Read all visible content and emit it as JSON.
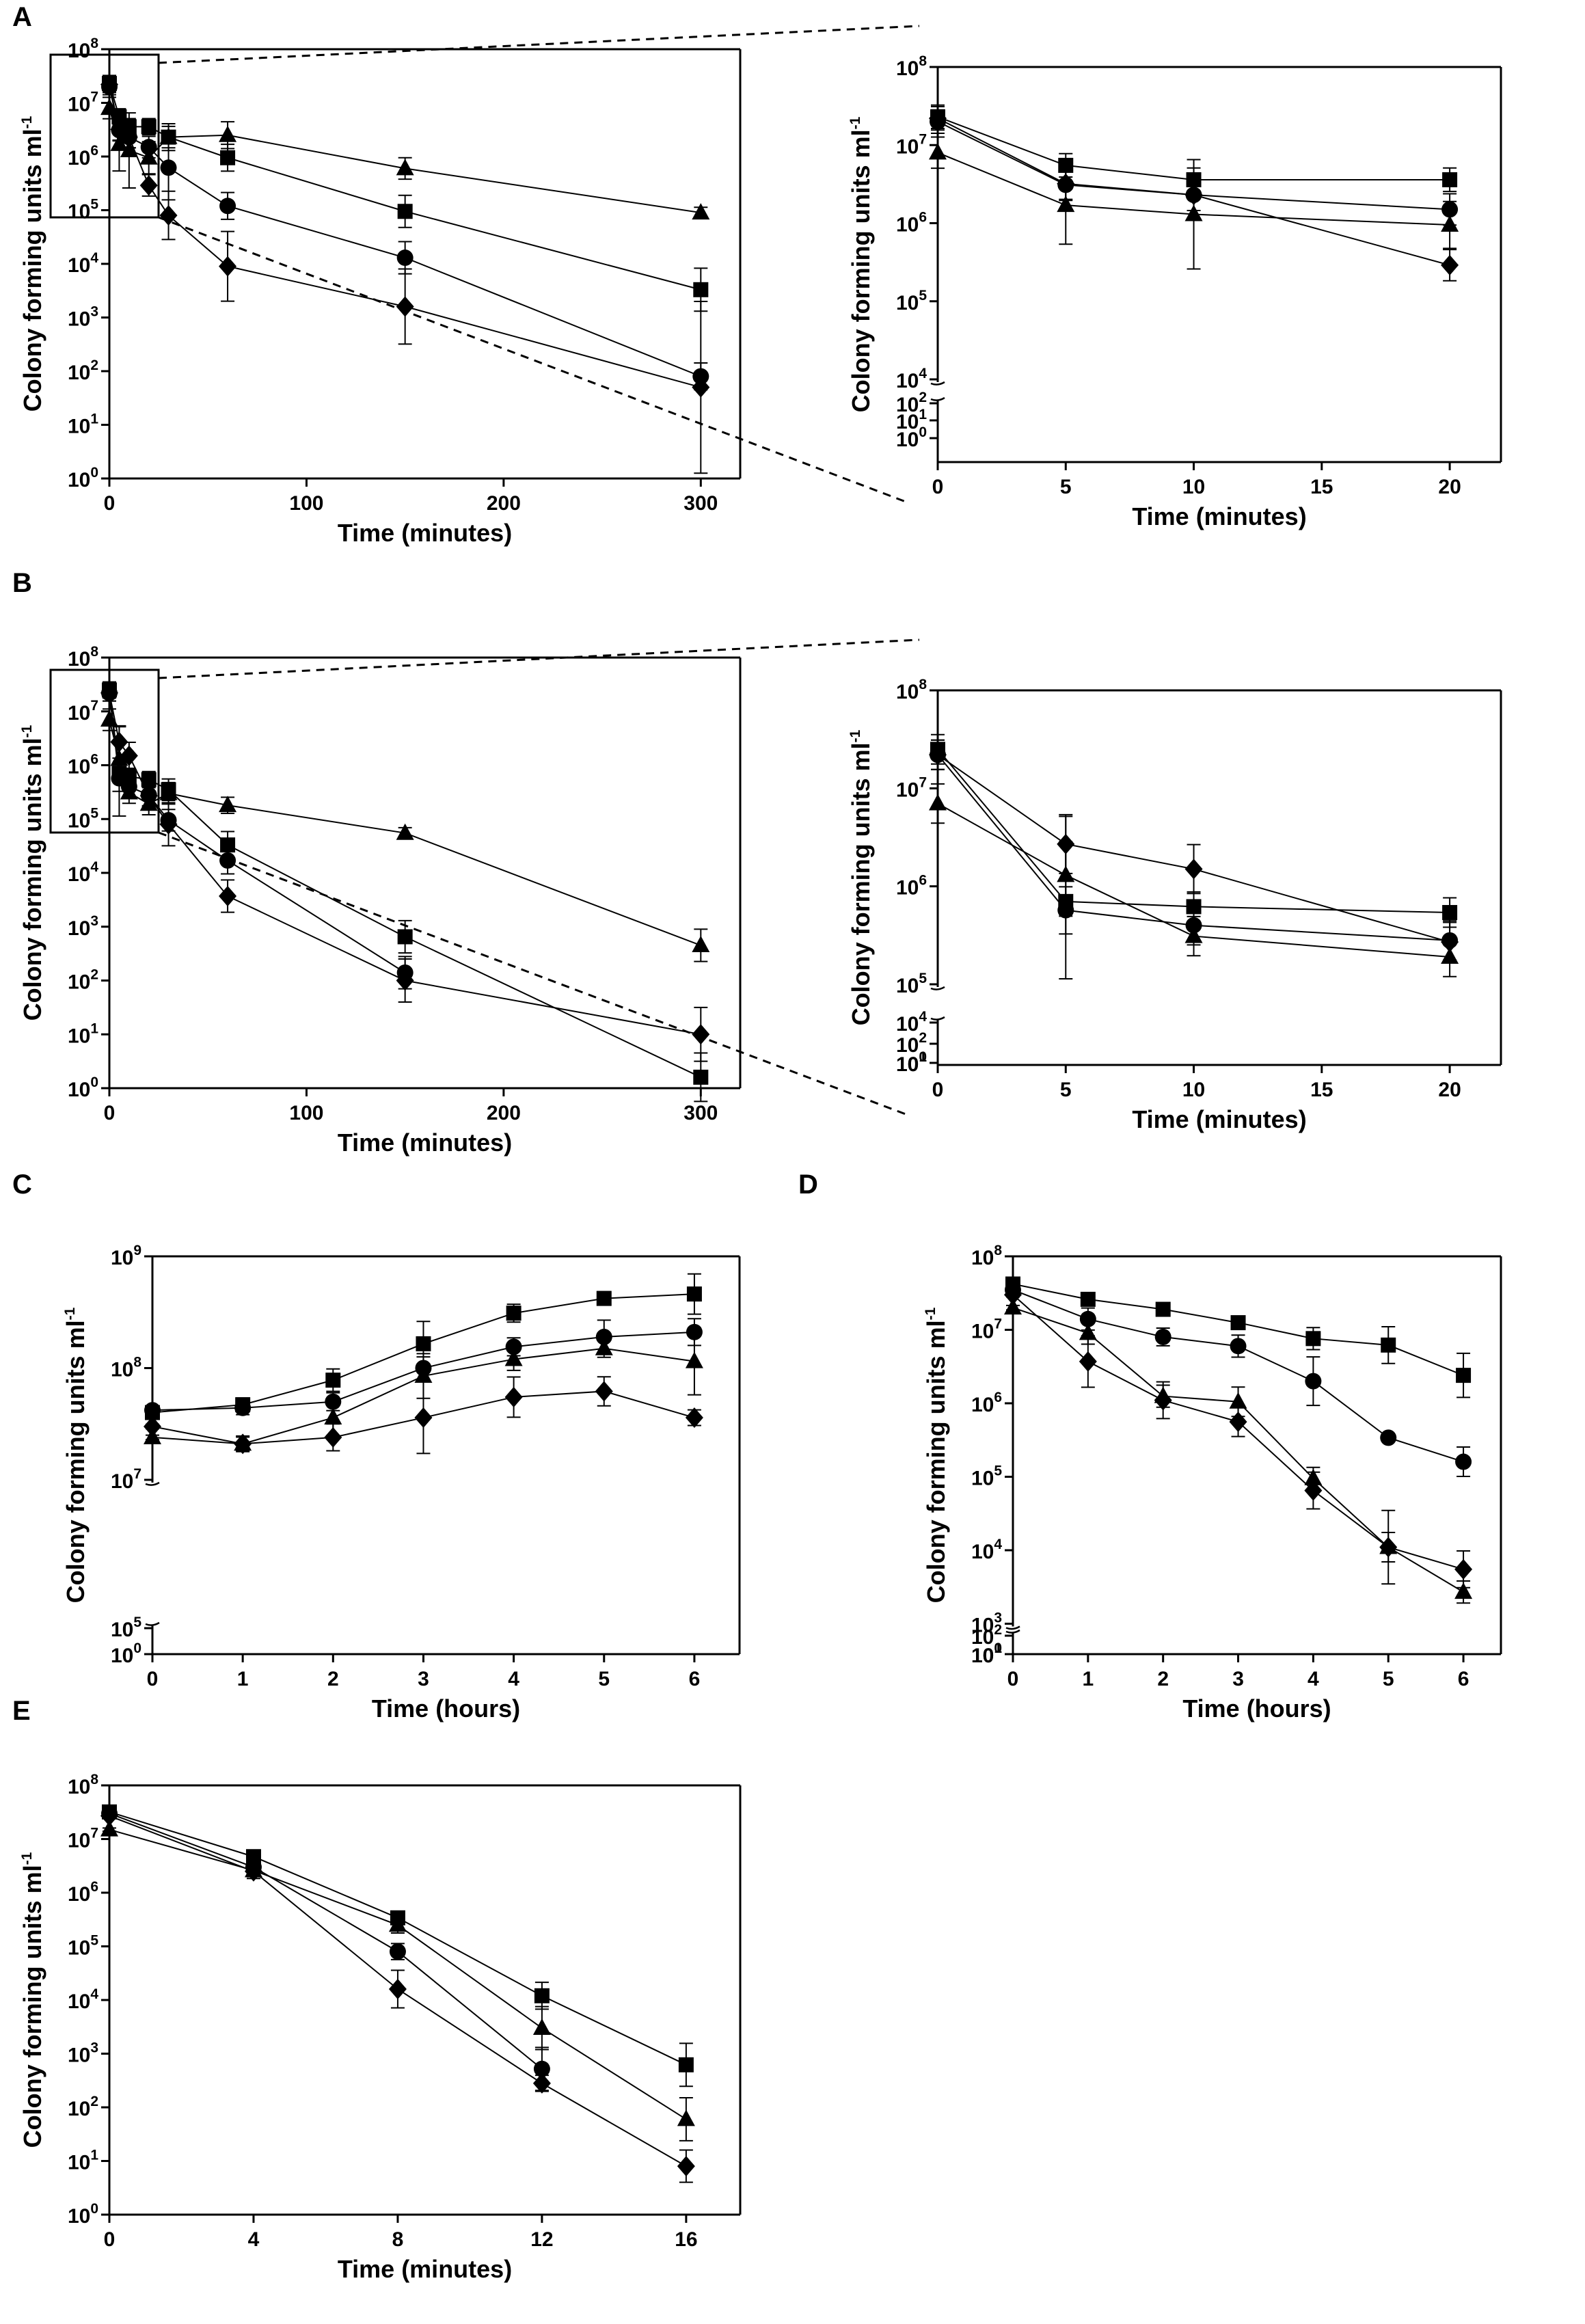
{
  "chart_data": [
    {
      "panel": "A",
      "type": "line",
      "yscale": "log",
      "xlabel": "Time (minutes)",
      "ylabel": "Colony forming units ml-1",
      "xlim": [
        0,
        320
      ],
      "xticks": [
        0,
        100,
        200,
        300
      ],
      "ylim_log10": [
        0,
        8
      ],
      "yticks_log10": [
        0,
        1,
        2,
        3,
        4,
        5,
        6,
        7,
        8
      ],
      "series": [
        {
          "name": "square",
          "marker": "square",
          "x": [
            0,
            5,
            10,
            20,
            30,
            60,
            150,
            300
          ],
          "y": [
            23000000,
            5500000,
            3600000,
            3600000,
            2300000,
            950000,
            95000,
            3300
          ],
          "err": [
            0.15,
            0.15,
            0.15,
            0.15,
            0.2,
            0.25,
            0.3,
            0.4
          ]
        },
        {
          "name": "circle",
          "marker": "circle",
          "x": [
            0,
            5,
            10,
            20,
            30,
            60,
            150,
            300
          ],
          "y": [
            20000000,
            3100000,
            2300000,
            1500000,
            620000,
            120000,
            13000,
            80
          ],
          "err": [
            0.15,
            0.2,
            0.2,
            0.2,
            0.6,
            0.25,
            0.3,
            0.25
          ]
        },
        {
          "name": "triangle",
          "marker": "triangle",
          "x": [
            0,
            5,
            10,
            20,
            30,
            60,
            150,
            300
          ],
          "y": [
            8000000,
            1700000,
            1300000,
            950000,
            2300000,
            2500000,
            600000,
            90000
          ],
          "err": [
            0.2,
            0.5,
            0.7,
            0.3,
            0.25,
            0.25,
            0.2,
            0.1
          ]
        },
        {
          "name": "diamond",
          "marker": "diamond",
          "x": [
            0,
            5,
            10,
            20,
            30,
            60,
            150,
            300
          ],
          "y": [
            22000000,
            3200000,
            2300000,
            290000,
            80000,
            9000,
            1600,
            50
          ],
          "err": [
            0.15,
            0.2,
            0.2,
            0.2,
            0.45,
            0.65,
            0.7,
            1.6
          ]
        }
      ],
      "inset": {
        "xlabel": "Time (minutes)",
        "ylabel": "Colony forming units ml-1",
        "xlim": [
          0,
          22
        ],
        "xticks": [
          0,
          5,
          10,
          15,
          20
        ],
        "yticks_log10": [
          0,
          1,
          2,
          4,
          5,
          6,
          7,
          8
        ]
      }
    },
    {
      "panel": "B",
      "type": "line",
      "yscale": "log",
      "xlabel": "Time (minutes)",
      "ylabel": "Colony forming units ml-1",
      "xlim": [
        0,
        320
      ],
      "xticks": [
        0,
        100,
        200,
        300
      ],
      "ylim_log10": [
        0,
        8
      ],
      "yticks_log10": [
        0,
        1,
        2,
        3,
        4,
        5,
        6,
        7,
        8
      ],
      "series": [
        {
          "name": "square",
          "marker": "square",
          "x": [
            0,
            5,
            10,
            20,
            30,
            60,
            150,
            300
          ],
          "y": [
            25000000,
            700000,
            620000,
            540000,
            350000,
            33000,
            650,
            1.6
          ],
          "err": [
            0.15,
            0.15,
            0.15,
            0.15,
            0.2,
            0.25,
            0.3,
            0.45
          ]
        },
        {
          "name": "circle",
          "marker": "circle",
          "x": [
            0,
            5,
            10,
            20,
            30,
            60,
            150,
            300
          ],
          "y": [
            22000000,
            570000,
            400000,
            280000,
            95000,
            17000,
            140,
            0
          ],
          "err": [
            0.15,
            0.7,
            0.2,
            0.2,
            0.2,
            0.25,
            0.3,
            0
          ]
        },
        {
          "name": "triangle",
          "marker": "triangle",
          "x": [
            0,
            5,
            10,
            20,
            30,
            60,
            150,
            300
          ],
          "y": [
            7000000,
            1300000,
            310000,
            190000,
            300000,
            180000,
            55000,
            450
          ],
          "err": [
            0.2,
            0.6,
            0.2,
            0.2,
            0.2,
            0.15,
            0.1,
            0.3
          ]
        },
        {
          "name": "diamond",
          "marker": "diamond",
          "x": [
            0,
            5,
            10,
            20,
            30,
            60,
            150,
            300
          ],
          "y": [
            22000000,
            2700000,
            1500000,
            270000,
            80000,
            3700,
            100,
            10
          ],
          "err": [
            0.15,
            0.3,
            0.25,
            0.2,
            0.4,
            0.3,
            0.4,
            0.5
          ]
        }
      ],
      "inset": {
        "xlabel": "Time (minutes)",
        "ylabel": "Colony forming units ml-1",
        "xlim": [
          0,
          22
        ],
        "xticks": [
          0,
          5,
          10,
          15,
          20
        ],
        "yticks_log10": [
          0,
          1,
          2,
          4,
          5,
          6,
          7,
          8
        ]
      }
    },
    {
      "panel": "C",
      "type": "line",
      "yscale": "log",
      "xlabel": "Time (hours)",
      "ylabel": "Colony forming units ml-1",
      "xlim": [
        0,
        6.5
      ],
      "xticks": [
        0,
        1,
        2,
        3,
        4,
        5,
        6
      ],
      "yticks_log10": [
        0,
        5,
        7,
        8,
        9
      ],
      "series": [
        {
          "name": "square",
          "marker": "square",
          "x": [
            0,
            1,
            2,
            3,
            4,
            5,
            6
          ],
          "y": [
            40000000,
            47000000,
            78000000,
            165000000,
            310000000,
            420000000,
            460000000
          ],
          "err": [
            0.02,
            0.06,
            0.1,
            0.2,
            0.08,
            0.06,
            0.18
          ]
        },
        {
          "name": "circle",
          "marker": "circle",
          "x": [
            0,
            1,
            2,
            3,
            4,
            5,
            6
          ],
          "y": [
            42000000,
            44000000,
            50000000,
            100000000,
            155000000,
            190000000,
            210000000
          ],
          "err": [
            0.02,
            0.06,
            0.08,
            0.1,
            0.08,
            0.15,
            0.12
          ]
        },
        {
          "name": "triangle",
          "marker": "triangle",
          "x": [
            0,
            1,
            2,
            3,
            4,
            5,
            6
          ],
          "y": [
            24000000,
            21000000,
            36000000,
            85000000,
            120000000,
            150000000,
            115000000
          ],
          "err": [
            0.02,
            0.06,
            0.16,
            0.2,
            0.1,
            0.08,
            0.3
          ]
        },
        {
          "name": "diamond",
          "marker": "diamond",
          "x": [
            0,
            1,
            2,
            3,
            4,
            5,
            6
          ],
          "y": [
            30000000,
            21000000,
            24000000,
            36000000,
            55000000,
            62000000,
            36000000
          ],
          "err": [
            0.02,
            0.07,
            0.12,
            0.32,
            0.18,
            0.13,
            0.07
          ]
        }
      ]
    },
    {
      "panel": "D",
      "type": "line",
      "yscale": "log",
      "xlabel": "Time (hours)",
      "ylabel": "Colony forming units ml-1",
      "xlim": [
        0,
        6.5
      ],
      "xticks": [
        0,
        1,
        2,
        3,
        4,
        5,
        6
      ],
      "yticks_log10": [
        0,
        1,
        2,
        3,
        4,
        5,
        6,
        7,
        8
      ],
      "series": [
        {
          "name": "square",
          "marker": "square",
          "x": [
            0,
            1,
            2,
            3,
            4,
            5,
            6
          ],
          "y": [
            42000000,
            26000000,
            19000000,
            12500000,
            7600000,
            6200000,
            2400000
          ],
          "err": [
            0.02,
            0.04,
            0.04,
            0.08,
            0.15,
            0.25,
            0.3
          ]
        },
        {
          "name": "circle",
          "marker": "circle",
          "x": [
            0,
            1,
            2,
            3,
            4,
            5,
            6
          ],
          "y": [
            35000000,
            14000000,
            8000000,
            6000000,
            2000000,
            340000,
            160000
          ],
          "err": [
            0.03,
            0.15,
            0.12,
            0.15,
            0.33,
            0.03,
            0.2
          ]
        },
        {
          "name": "triangle",
          "marker": "triangle",
          "x": [
            0,
            1,
            2,
            3,
            4,
            5,
            6
          ],
          "y": [
            20000000,
            9000000,
            1250000,
            1050000,
            95000,
            11000,
            2700
          ],
          "err": [
            0.03,
            0.15,
            0.15,
            0.2,
            0.15,
            0.2,
            0.15
          ]
        },
        {
          "name": "diamond",
          "marker": "diamond",
          "x": [
            0,
            1,
            2,
            3,
            4,
            5,
            6
          ],
          "y": [
            30000000,
            3700000,
            1100000,
            560000,
            65000,
            11000,
            5500
          ],
          "err": [
            0.03,
            0.35,
            0.25,
            0.2,
            0.25,
            0.5,
            0.25
          ]
        }
      ]
    },
    {
      "panel": "E",
      "type": "line",
      "yscale": "log",
      "xlabel": "Time (minutes)",
      "ylabel": "Colony forming units ml-1",
      "xlim": [
        0,
        17.5
      ],
      "xticks": [
        0,
        4,
        8,
        12,
        16
      ],
      "ylim_log10": [
        0,
        8
      ],
      "yticks_log10": [
        0,
        1,
        2,
        3,
        4,
        5,
        6,
        7,
        8
      ],
      "series": [
        {
          "name": "square",
          "marker": "square",
          "x": [
            0,
            4,
            8,
            12,
            16
          ],
          "y": [
            32000000,
            4700000,
            340000,
            12000,
            620
          ],
          "err": [
            0.02,
            0.1,
            0.12,
            0.25,
            0.4
          ]
        },
        {
          "name": "circle",
          "marker": "circle",
          "x": [
            0,
            4,
            8,
            12,
            16
          ],
          "y": [
            30000000,
            3000000,
            80000,
            520,
            0
          ],
          "err": [
            0.02,
            0.1,
            0.15,
            0.4,
            0
          ]
        },
        {
          "name": "triangle",
          "marker": "triangle",
          "x": [
            0,
            4,
            8,
            12,
            16
          ],
          "y": [
            15000000,
            2600000,
            250000,
            3000,
            60
          ],
          "err": [
            0.03,
            0.15,
            0.15,
            0.4,
            0.4
          ]
        },
        {
          "name": "diamond",
          "marker": "diamond",
          "x": [
            0,
            4,
            8,
            12,
            16
          ],
          "y": [
            27000000,
            2500000,
            16000,
            280,
            8
          ],
          "err": [
            0.02,
            0.1,
            0.35,
            0.15,
            0.3
          ]
        }
      ]
    }
  ]
}
